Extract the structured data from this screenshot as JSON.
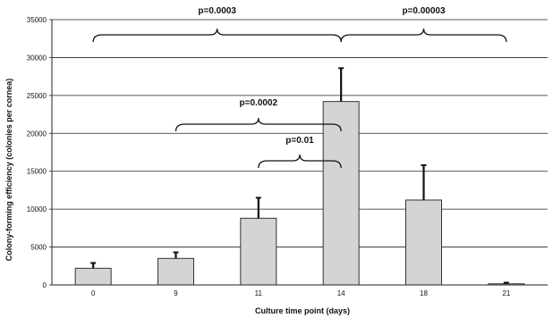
{
  "chart_data": {
    "type": "bar",
    "title": "",
    "xlabel": "Culture time point (days)",
    "ylabel": "Colony-forming efficiency (colonies per cornea)",
    "ylim": [
      0,
      35000
    ],
    "yticks": [
      "0",
      "5000",
      "10000",
      "15000",
      "20000",
      "25000",
      "30000",
      "35000"
    ],
    "categories": [
      "0",
      "9",
      "11",
      "14",
      "18",
      "21"
    ],
    "values": [
      2200,
      3500,
      8800,
      24200,
      11200,
      150
    ],
    "error": [
      700,
      800,
      2700,
      4400,
      4600,
      150
    ],
    "grid": true,
    "bar_color": "#d4d4d4",
    "annotations": [
      {
        "label": "p=0.0003",
        "from": "0",
        "to": "14"
      },
      {
        "label": "p=0.00003",
        "from": "14",
        "to": "21"
      },
      {
        "label": "p=0.0002",
        "from": "9",
        "to": "14"
      },
      {
        "label": "p=0.01",
        "from": "11",
        "to": "14"
      }
    ]
  }
}
